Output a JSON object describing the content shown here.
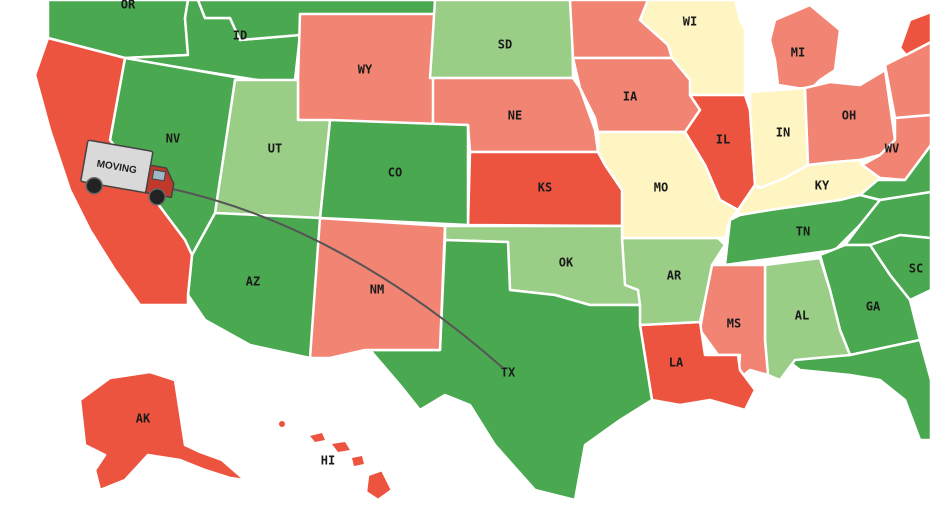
{
  "colors": {
    "dark_green": "#4aa851",
    "light_green": "#9acd85",
    "pale_yellow": "#fff5c2",
    "salmon": "#f28473",
    "red": "#ec5440"
  },
  "states": [
    {
      "id": "OR",
      "label": "OR",
      "color": "dark_green"
    },
    {
      "id": "ID",
      "label": "ID",
      "color": "dark_green"
    },
    {
      "id": "MT",
      "label": "",
      "color": "dark_green"
    },
    {
      "id": "WY",
      "label": "WY",
      "color": "salmon"
    },
    {
      "id": "SD",
      "label": "SD",
      "color": "light_green"
    },
    {
      "id": "NE",
      "label": "NE",
      "color": "salmon"
    },
    {
      "id": "MN",
      "label": "",
      "color": "salmon"
    },
    {
      "id": "IA",
      "label": "IA",
      "color": "salmon"
    },
    {
      "id": "WI",
      "label": "WI",
      "color": "pale_yellow"
    },
    {
      "id": "MI",
      "label": "MI",
      "color": "salmon"
    },
    {
      "id": "IL",
      "label": "IL",
      "color": "red"
    },
    {
      "id": "IN",
      "label": "IN",
      "color": "pale_yellow"
    },
    {
      "id": "OH",
      "label": "OH",
      "color": "salmon"
    },
    {
      "id": "PA",
      "label": "",
      "color": "salmon"
    },
    {
      "id": "NY",
      "label": "",
      "color": "red"
    },
    {
      "id": "WV",
      "label": "WV",
      "color": "salmon"
    },
    {
      "id": "VA",
      "label": "",
      "color": "dark_green"
    },
    {
      "id": "KY",
      "label": "KY",
      "color": "pale_yellow"
    },
    {
      "id": "TN",
      "label": "TN",
      "color": "dark_green"
    },
    {
      "id": "NC",
      "label": "",
      "color": "dark_green"
    },
    {
      "id": "SC",
      "label": "SC",
      "color": "dark_green"
    },
    {
      "id": "GA",
      "label": "GA",
      "color": "dark_green"
    },
    {
      "id": "FL",
      "label": "",
      "color": "dark_green"
    },
    {
      "id": "AL",
      "label": "AL",
      "color": "light_green"
    },
    {
      "id": "MS",
      "label": "MS",
      "color": "salmon"
    },
    {
      "id": "LA",
      "label": "LA",
      "color": "red"
    },
    {
      "id": "AR",
      "label": "AR",
      "color": "light_green"
    },
    {
      "id": "MO",
      "label": "MO",
      "color": "pale_yellow"
    },
    {
      "id": "KS",
      "label": "KS",
      "color": "red"
    },
    {
      "id": "OK",
      "label": "OK",
      "color": "light_green"
    },
    {
      "id": "TX",
      "label": "TX",
      "color": "dark_green"
    },
    {
      "id": "NM",
      "label": "NM",
      "color": "salmon"
    },
    {
      "id": "CO",
      "label": "CO",
      "color": "dark_green"
    },
    {
      "id": "UT",
      "label": "UT",
      "color": "light_green"
    },
    {
      "id": "AZ",
      "label": "AZ",
      "color": "dark_green"
    },
    {
      "id": "NV",
      "label": "NV",
      "color": "dark_green"
    },
    {
      "id": "CA",
      "label": "",
      "color": "red"
    },
    {
      "id": "AK",
      "label": "AK",
      "color": "red"
    },
    {
      "id": "HI",
      "label": "HI",
      "color": "red"
    }
  ],
  "truck": {
    "sign": "MOVING",
    "icon": "moving-truck-icon"
  },
  "route": {
    "from": "CA",
    "to": "TX"
  }
}
